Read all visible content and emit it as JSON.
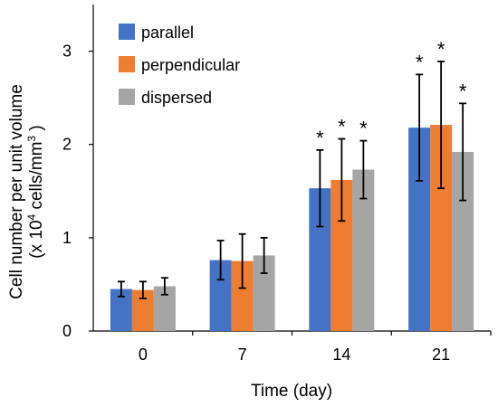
{
  "chart_data": {
    "type": "bar",
    "xlabel": "Time (day)",
    "ylabel_line1": "Cell number per unit volume",
    "ylabel_line2_prefix": "(x 10",
    "ylabel_line2_exp1": "4",
    "ylabel_line2_mid": " cells/mm",
    "ylabel_line2_exp2": "3",
    "ylabel_line2_suffix": " )",
    "categories": [
      "0",
      "7",
      "14",
      "21"
    ],
    "ylim": [
      0,
      3.5
    ],
    "yticks": [
      "0",
      "1",
      "2",
      "3"
    ],
    "grid": false,
    "legend_position": "top-left",
    "series": [
      {
        "name": "parallel",
        "color": "#4472C4",
        "values": [
          0.45,
          0.76,
          1.53,
          2.18
        ],
        "errors": [
          0.08,
          0.21,
          0.41,
          0.57
        ],
        "significant": [
          false,
          false,
          true,
          true
        ]
      },
      {
        "name": "perpendicular",
        "color": "#ED7D31",
        "values": [
          0.44,
          0.75,
          1.62,
          2.21
        ],
        "errors": [
          0.09,
          0.29,
          0.44,
          0.68
        ],
        "significant": [
          false,
          false,
          true,
          true
        ]
      },
      {
        "name": "dispersed",
        "color": "#A5A5A5",
        "values": [
          0.48,
          0.81,
          1.73,
          1.92
        ],
        "errors": [
          0.09,
          0.19,
          0.31,
          0.52
        ],
        "significant": [
          false,
          false,
          true,
          true
        ]
      }
    ],
    "significance_marker": "*"
  }
}
